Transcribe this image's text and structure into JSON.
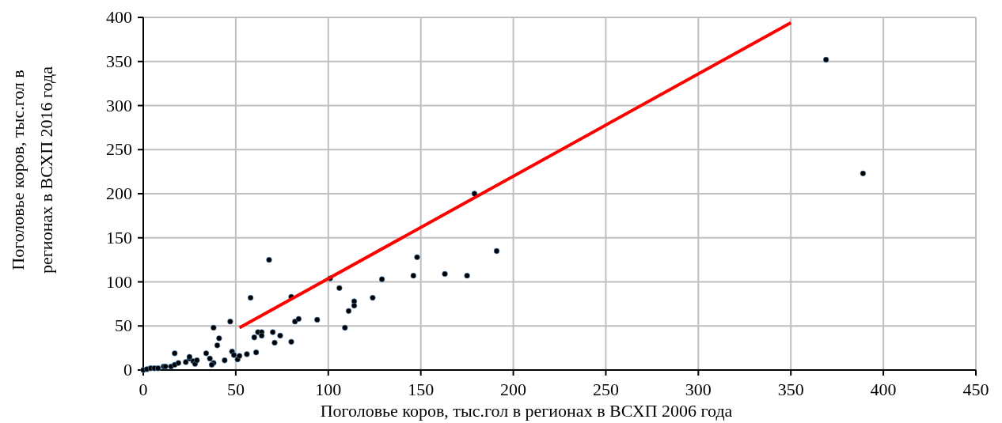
{
  "chart_data": {
    "type": "scatter",
    "xlabel": "Поголовье коров, тыс.гол в регионах в ВСХП 2006 года",
    "ylabel": "Поголовье коров, тыс.гол в регионах в ВСХП 2016 года",
    "xlim": [
      0,
      450
    ],
    "xticks": [
      0,
      50,
      100,
      150,
      200,
      250,
      300,
      350,
      400,
      450
    ],
    "ylim": [
      0,
      400
    ],
    "yticks": [
      0,
      50,
      100,
      150,
      200,
      250,
      300,
      350,
      400
    ],
    "grid": true,
    "series": [
      {
        "marker": "circle",
        "color": "#000000",
        "x": [
          0,
          2,
          4,
          6,
          8,
          11,
          12,
          15,
          17,
          19,
          17,
          23,
          25,
          25,
          27,
          28,
          29,
          34,
          36,
          38,
          37,
          38,
          40,
          41,
          44,
          47,
          48,
          49,
          51,
          52,
          56,
          58,
          60,
          62,
          61,
          64,
          64,
          68,
          70,
          71,
          74,
          80,
          80,
          82,
          84,
          94,
          101,
          106,
          109,
          111,
          114,
          114,
          124,
          129,
          146,
          148,
          163,
          175,
          179,
          191,
          369,
          389
        ],
        "values": [
          0,
          1,
          2,
          2,
          2,
          4,
          4,
          4,
          6,
          8,
          19,
          9,
          13,
          15,
          10,
          7,
          11,
          19,
          13,
          8,
          6,
          48,
          28,
          36,
          11,
          55,
          21,
          17,
          12,
          16,
          18,
          82,
          37,
          43,
          20,
          43,
          39,
          125,
          43,
          31,
          39,
          32,
          83,
          55,
          58,
          57,
          104,
          93,
          48,
          67,
          78,
          73,
          82,
          103,
          107,
          128,
          109,
          107,
          200,
          135,
          352,
          223
        ]
      },
      {
        "type": "line",
        "marker": "none",
        "color": "#ff0000",
        "x": [
          52,
          350
        ],
        "values": [
          48,
          394
        ]
      }
    ]
  }
}
